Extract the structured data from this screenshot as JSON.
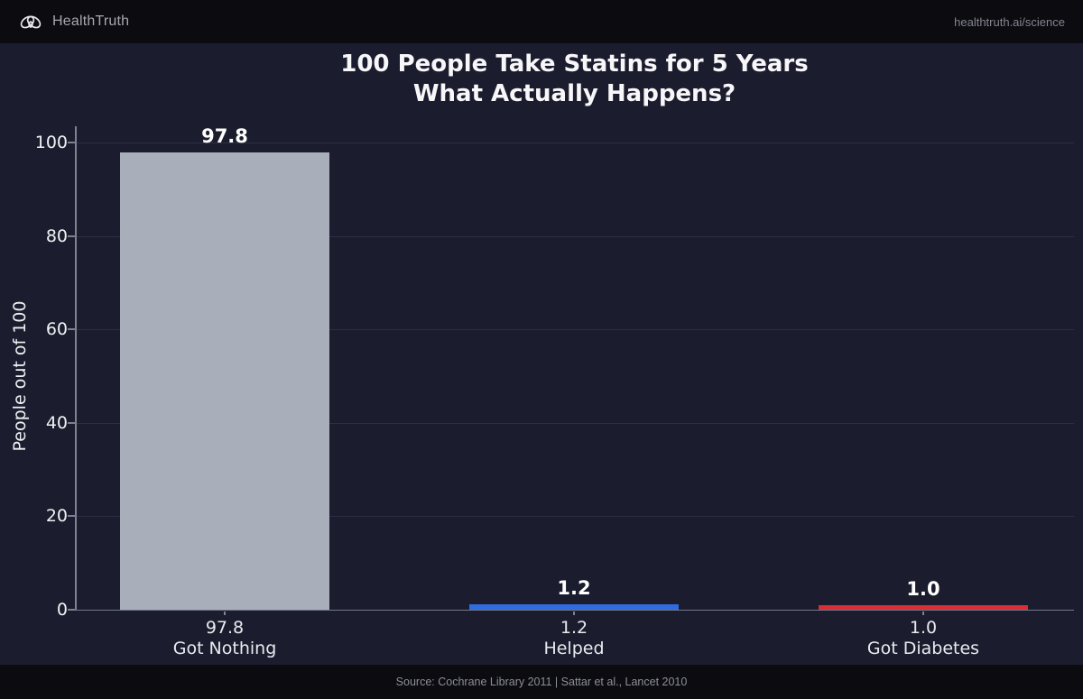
{
  "header": {
    "brand": "HealthTruth",
    "logo_icon": "knot-heart-icon",
    "url": "healthtruth.ai/science"
  },
  "title": {
    "line1": "100 People Take Statins for 5 Years",
    "line2": "What Actually Happens?"
  },
  "footer": {
    "source": "Source: Cochrane Library 2011 | Sattar et al., Lancet 2010"
  },
  "colors": {
    "background": "#1b1d2e",
    "banner": "#0b0b10",
    "bar_gray": "#a9afba",
    "bar_blue": "#2f6cdf",
    "bar_red": "#d92e35",
    "grid": "#2c2f45",
    "axis": "#7d8190",
    "text": "#f0f1f4"
  },
  "chart_data": {
    "type": "bar",
    "title": "100 People Take Statins for 5 Years — What Actually Happens?",
    "categories": [
      "Got Nothing",
      "Helped",
      "Got Diabetes"
    ],
    "values": [
      97.8,
      1.2,
      1.0
    ],
    "value_labels": [
      "97.8",
      "1.2",
      "1.0"
    ],
    "xtick_labels": [
      [
        "97.8",
        "Got Nothing"
      ],
      [
        "1.2",
        "Helped"
      ],
      [
        "1.0",
        "Got Diabetes"
      ]
    ],
    "bar_colors": [
      "#a9afba",
      "#2f6cdf",
      "#d92e35"
    ],
    "xlabel": "",
    "ylabel": "People out of 100",
    "ylim": [
      0,
      100
    ],
    "yticks": [
      0,
      20,
      40,
      60,
      80,
      100
    ],
    "grid": true,
    "legend": "none",
    "theme": "dark"
  }
}
